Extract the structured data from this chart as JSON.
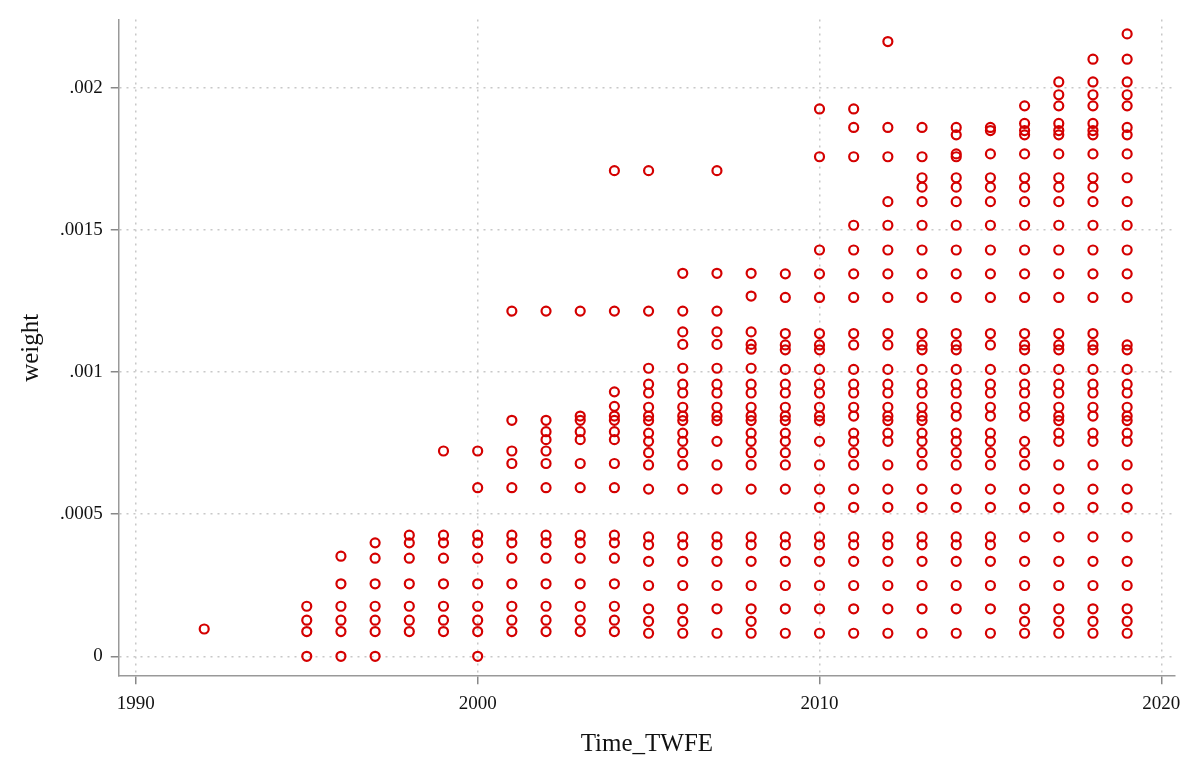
{
  "chart_data": {
    "type": "scatter",
    "xlabel": "Time_TWFE",
    "ylabel": "weight",
    "xlim": [
      1989.5,
      2020.4
    ],
    "ylim": [
      -7e-05,
      0.00224
    ],
    "xticks": [
      1990,
      2000,
      2010,
      2020
    ],
    "yticks": [
      0,
      {
        "value": 0.0005,
        "label": ".0005"
      },
      {
        "value": 0.001,
        "label": ".001"
      },
      {
        "value": 0.0015,
        "label": ".0015"
      },
      {
        "value": 0.002,
        "label": ".002"
      }
    ],
    "grid": true,
    "marker": "circle",
    "series": [
      {
        "color": "#d40000",
        "x": [
          1992,
          1995,
          1995,
          1995,
          1995,
          1996,
          1996,
          1996,
          1996,
          1996,
          1996,
          1997,
          1997,
          1997,
          1997,
          1997,
          1997,
          1997,
          1998,
          1998,
          1998,
          1998,
          1998,
          1998,
          1998,
          1999,
          1999,
          1999,
          1999,
          1999,
          1999,
          1999,
          1999,
          2000,
          2000,
          2000,
          2000,
          2000,
          2000,
          2000,
          2000,
          2000,
          2000,
          2001,
          2001,
          2001,
          2001,
          2001,
          2001,
          2001,
          2001,
          2001,
          2001,
          2001,
          2001,
          2002,
          2002,
          2002,
          2002,
          2002,
          2002,
          2002,
          2002,
          2002,
          2002,
          2002,
          2002,
          2002,
          2002,
          2003,
          2003,
          2003,
          2003,
          2003,
          2003,
          2003,
          2003,
          2003,
          2003,
          2003,
          2003,
          2003,
          2003,
          2004,
          2004,
          2004,
          2004,
          2004,
          2004,
          2004,
          2004,
          2004,
          2004,
          2004,
          2004,
          2004,
          2004,
          2004,
          2004,
          2004,
          2005,
          2005,
          2005,
          2005,
          2005,
          2005,
          2005,
          2005,
          2005,
          2005,
          2005,
          2005,
          2005,
          2005,
          2005,
          2005,
          2005,
          2005,
          2005,
          2005,
          2006,
          2006,
          2006,
          2006,
          2006,
          2006,
          2006,
          2006,
          2006,
          2006,
          2006,
          2006,
          2006,
          2006,
          2006,
          2006,
          2006,
          2006,
          2006,
          2006,
          2006,
          2006,
          2007,
          2007,
          2007,
          2007,
          2007,
          2007,
          2007,
          2007,
          2007,
          2007,
          2007,
          2007,
          2007,
          2007,
          2007,
          2007,
          2007,
          2007,
          2007,
          2007,
          2008,
          2008,
          2008,
          2008,
          2008,
          2008,
          2008,
          2008,
          2008,
          2008,
          2008,
          2008,
          2008,
          2008,
          2008,
          2008,
          2008,
          2008,
          2008,
          2008,
          2008,
          2008,
          2008,
          2009,
          2009,
          2009,
          2009,
          2009,
          2009,
          2009,
          2009,
          2009,
          2009,
          2009,
          2009,
          2009,
          2009,
          2009,
          2009,
          2009,
          2009,
          2009,
          2009,
          2009,
          2009,
          2010,
          2010,
          2010,
          2010,
          2010,
          2010,
          2010,
          2010,
          2010,
          2010,
          2010,
          2010,
          2010,
          2010,
          2010,
          2010,
          2010,
          2010,
          2010,
          2010,
          2010,
          2010,
          2010,
          2010,
          2011,
          2011,
          2011,
          2011,
          2011,
          2011,
          2011,
          2011,
          2011,
          2011,
          2011,
          2011,
          2011,
          2011,
          2011,
          2011,
          2011,
          2011,
          2011,
          2011,
          2011,
          2011,
          2011,
          2011,
          2011,
          2011,
          2012,
          2012,
          2012,
          2012,
          2012,
          2012,
          2012,
          2012,
          2012,
          2012,
          2012,
          2012,
          2012,
          2012,
          2012,
          2012,
          2012,
          2012,
          2012,
          2012,
          2012,
          2012,
          2012,
          2012,
          2012,
          2012,
          2012,
          2013,
          2013,
          2013,
          2013,
          2013,
          2013,
          2013,
          2013,
          2013,
          2013,
          2013,
          2013,
          2013,
          2013,
          2013,
          2013,
          2013,
          2013,
          2013,
          2013,
          2013,
          2013,
          2013,
          2013,
          2013,
          2013,
          2013,
          2013,
          2013,
          2013,
          2014,
          2014,
          2014,
          2014,
          2014,
          2014,
          2014,
          2014,
          2014,
          2014,
          2014,
          2014,
          2014,
          2014,
          2014,
          2014,
          2014,
          2014,
          2014,
          2014,
          2014,
          2014,
          2014,
          2014,
          2014,
          2014,
          2014,
          2014,
          2014,
          2014,
          2014,
          2015,
          2015,
          2015,
          2015,
          2015,
          2015,
          2015,
          2015,
          2015,
          2015,
          2015,
          2015,
          2015,
          2015,
          2015,
          2015,
          2015,
          2015,
          2015,
          2015,
          2015,
          2015,
          2015,
          2015,
          2015,
          2015,
          2015,
          2015,
          2015,
          2016,
          2016,
          2016,
          2016,
          2016,
          2016,
          2016,
          2016,
          2016,
          2016,
          2016,
          2016,
          2016,
          2016,
          2016,
          2016,
          2016,
          2016,
          2016,
          2016,
          2016,
          2016,
          2016,
          2016,
          2016,
          2016,
          2016,
          2016,
          2016,
          2016,
          2016,
          2017,
          2017,
          2017,
          2017,
          2017,
          2017,
          2017,
          2017,
          2017,
          2017,
          2017,
          2017,
          2017,
          2017,
          2017,
          2017,
          2017,
          2017,
          2017,
          2017,
          2017,
          2017,
          2017,
          2017,
          2017,
          2017,
          2017,
          2017,
          2017,
          2017,
          2017,
          2017,
          2017,
          2017,
          2018,
          2018,
          2018,
          2018,
          2018,
          2018,
          2018,
          2018,
          2018,
          2018,
          2018,
          2018,
          2018,
          2018,
          2018,
          2018,
          2018,
          2018,
          2018,
          2018,
          2018,
          2018,
          2018,
          2018,
          2018,
          2018,
          2018,
          2018,
          2018,
          2018,
          2018,
          2018,
          2018,
          2018,
          2019,
          2019,
          2019,
          2019,
          2019,
          2019,
          2019,
          2019,
          2019,
          2019,
          2019,
          2019,
          2019,
          2019,
          2019,
          2019,
          2019,
          2019,
          2019,
          2019,
          2019,
          2019,
          2019,
          2019,
          2019,
          2019,
          2019,
          2019,
          2019,
          2019,
          2019,
          2019,
          2019
        ],
        "values": [
          9.6e-05,
          0,
          8.7e-05,
          0.000127,
          0.000176,
          0,
          8.7e-05,
          0.000127,
          0.000176,
          0.000255,
          0.000352,
          0,
          8.7e-05,
          0.000127,
          0.000176,
          0.000255,
          0.000345,
          0.000399,
          8.7e-05,
          0.000127,
          0.000176,
          0.000255,
          0.000345,
          0.000399,
          0.000426,
          8.7e-05,
          0.000127,
          0.000176,
          0.000255,
          0.000345,
          0.000399,
          0.000426,
          0.000722,
          0,
          8.7e-05,
          0.000127,
          0.000176,
          0.000255,
          0.000345,
          0.000399,
          0.000426,
          0.000593,
          0.000722,
          8.7e-05,
          0.000127,
          0.000176,
          0.000255,
          0.000345,
          0.000399,
          0.000426,
          0.000593,
          0.000678,
          0.000722,
          0.00083,
          0.001214,
          8.7e-05,
          0.000127,
          0.000176,
          0.000255,
          0.000345,
          0.000399,
          0.000426,
          0.000593,
          0.000678,
          0.000722,
          0.000762,
          0.00079,
          0.00083,
          0.001214,
          8.7e-05,
          0.000127,
          0.000176,
          0.000255,
          0.000345,
          0.000399,
          0.000426,
          0.000593,
          0.000678,
          0.000762,
          0.00079,
          0.00083,
          0.000845,
          0.001214,
          8.7e-05,
          0.000127,
          0.000176,
          0.000255,
          0.000345,
          0.000399,
          0.000426,
          0.000593,
          0.000678,
          0.000762,
          0.00079,
          0.00083,
          0.000845,
          0.000879,
          0.00093,
          0.001214,
          0.001708,
          8.1e-05,
          0.000123,
          0.000167,
          0.000249,
          0.000334,
          0.000392,
          0.00042,
          0.000588,
          0.000673,
          0.000716,
          0.000756,
          0.000785,
          0.000829,
          0.000845,
          0.000876,
          0.000926,
          0.000957,
          0.001708,
          0.001214,
          0.001013,
          8.1e-05,
          0.000123,
          0.000167,
          0.000249,
          0.000334,
          0.000392,
          0.00042,
          0.000588,
          0.000673,
          0.000716,
          0.000756,
          0.000785,
          0.000829,
          0.000845,
          0.000876,
          0.000926,
          0.000957,
          0.001347,
          0.001214,
          0.001141,
          0.001097,
          0.001013,
          8.1e-05,
          0.000167,
          0.000249,
          0.000334,
          0.000392,
          0.00042,
          0.000588,
          0.000673,
          0.000756,
          0.000829,
          0.000845,
          0.000876,
          0.000926,
          0.000957,
          0.001708,
          0.001347,
          0.001214,
          0.001141,
          0.001097,
          0.001013,
          8.1e-05,
          0.000123,
          0.000167,
          0.000249,
          0.000334,
          0.000392,
          0.00042,
          0.000588,
          0.000673,
          0.000716,
          0.000756,
          0.000785,
          0.000829,
          0.000845,
          0.000876,
          0.000926,
          0.000957,
          0.001347,
          0.001267,
          0.001141,
          0.001097,
          0.00108,
          0.001013,
          8.1e-05,
          0.000167,
          0.000249,
          0.000334,
          0.000392,
          0.00042,
          0.000588,
          0.000673,
          0.000716,
          0.000756,
          0.000785,
          0.000829,
          0.000845,
          0.000876,
          0.000926,
          0.000957,
          0.001345,
          0.001262,
          0.001135,
          0.001095,
          0.001078,
          0.001009,
          8.1e-05,
          0.000167,
          0.000249,
          0.000334,
          0.000392,
          0.00042,
          0.000524,
          0.000588,
          0.000673,
          0.000756,
          0.000829,
          0.000845,
          0.000876,
          0.000926,
          0.000957,
          0.001925,
          0.001757,
          0.001429,
          0.001345,
          0.001262,
          0.001135,
          0.001095,
          0.001078,
          0.001009,
          8.1e-05,
          0.000167,
          0.000249,
          0.000334,
          0.000392,
          0.00042,
          0.000524,
          0.000588,
          0.000673,
          0.000716,
          0.000756,
          0.000785,
          0.000845,
          0.000876,
          0.000926,
          0.000957,
          0.001925,
          0.00186,
          0.001757,
          0.001516,
          0.001429,
          0.001345,
          0.001262,
          0.001135,
          0.001095,
          0.001009,
          8.1e-05,
          0.000167,
          0.000249,
          0.000334,
          0.000392,
          0.00042,
          0.000524,
          0.000588,
          0.000673,
          0.000756,
          0.000785,
          0.000829,
          0.000845,
          0.000876,
          0.000926,
          0.000957,
          0.002162,
          0.00186,
          0.001757,
          0.001599,
          0.001516,
          0.001429,
          0.001345,
          0.001262,
          0.001135,
          0.001095,
          0.001009,
          8.1e-05,
          0.000167,
          0.000249,
          0.000334,
          0.000392,
          0.00042,
          0.000524,
          0.000588,
          0.000673,
          0.000716,
          0.000756,
          0.000785,
          0.000829,
          0.000845,
          0.000876,
          0.000926,
          0.000957,
          0.00186,
          0.001757,
          0.001683,
          0.00165,
          0.001599,
          0.001516,
          0.001429,
          0.001345,
          0.001262,
          0.001135,
          0.001095,
          0.001078,
          0.001009,
          8.1e-05,
          0.000167,
          0.000249,
          0.000334,
          0.000392,
          0.00042,
          0.000524,
          0.000588,
          0.000673,
          0.000716,
          0.000756,
          0.000785,
          0.000845,
          0.000876,
          0.000926,
          0.000957,
          0.00186,
          0.001834,
          0.001767,
          0.001757,
          0.001683,
          0.00165,
          0.001599,
          0.001516,
          0.001429,
          0.001345,
          0.001262,
          0.001135,
          0.001095,
          0.001078,
          0.001009,
          8.1e-05,
          0.000167,
          0.000249,
          0.000334,
          0.000392,
          0.00042,
          0.000524,
          0.000588,
          0.000673,
          0.000716,
          0.000756,
          0.000785,
          0.000845,
          0.000876,
          0.000926,
          0.000957,
          0.00186,
          0.001849,
          0.001767,
          0.001683,
          0.00165,
          0.001599,
          0.001516,
          0.001429,
          0.001345,
          0.001262,
          0.001135,
          0.001095,
          0.001009,
          8.1e-05,
          0.000123,
          0.000167,
          0.000249,
          0.000334,
          0.00042,
          0.000524,
          0.000588,
          0.000673,
          0.000716,
          0.000756,
          0.000845,
          0.000876,
          0.000926,
          0.000957,
          0.001936,
          0.001874,
          0.001849,
          0.001834,
          0.001767,
          0.001683,
          0.00165,
          0.001599,
          0.001516,
          0.001429,
          0.001345,
          0.001262,
          0.001135,
          0.001095,
          0.001078,
          0.001009,
          8.1e-05,
          0.000123,
          0.000167,
          0.000249,
          0.000334,
          0.00042,
          0.000524,
          0.000588,
          0.000673,
          0.000756,
          0.000785,
          0.000829,
          0.000845,
          0.000876,
          0.000926,
          0.000957,
          0.00202,
          0.001975,
          0.001936,
          0.001874,
          0.001849,
          0.001834,
          0.001767,
          0.001683,
          0.00165,
          0.001599,
          0.001516,
          0.001429,
          0.001345,
          0.001262,
          0.001135,
          0.001095,
          0.001078,
          0.001009,
          8.1e-05,
          0.000123,
          0.000167,
          0.000249,
          0.000334,
          0.00042,
          0.000524,
          0.000588,
          0.000673,
          0.000756,
          0.000785,
          0.000845,
          0.000876,
          0.000926,
          0.000957,
          0.0021,
          0.00202,
          0.001975,
          0.001936,
          0.001874,
          0.001849,
          0.001834,
          0.001767,
          0.001683,
          0.00165,
          0.001599,
          0.001516,
          0.001429,
          0.001345,
          0.001262,
          0.001135,
          0.001095,
          0.001078,
          0.001009,
          8.1e-05,
          0.000123,
          0.000167,
          0.000249,
          0.000334,
          0.00042,
          0.000524,
          0.000588,
          0.000673,
          0.000756,
          0.000785,
          0.000829,
          0.000845,
          0.000876,
          0.000926,
          0.000957,
          0.002189,
          0.0021,
          0.00202,
          0.001975,
          0.001936,
          0.00186,
          0.001834,
          0.001767,
          0.001683,
          0.001599,
          0.001516,
          0.001429,
          0.001345,
          0.001262,
          0.001095,
          0.001078,
          0.001009
        ]
      }
    ]
  }
}
